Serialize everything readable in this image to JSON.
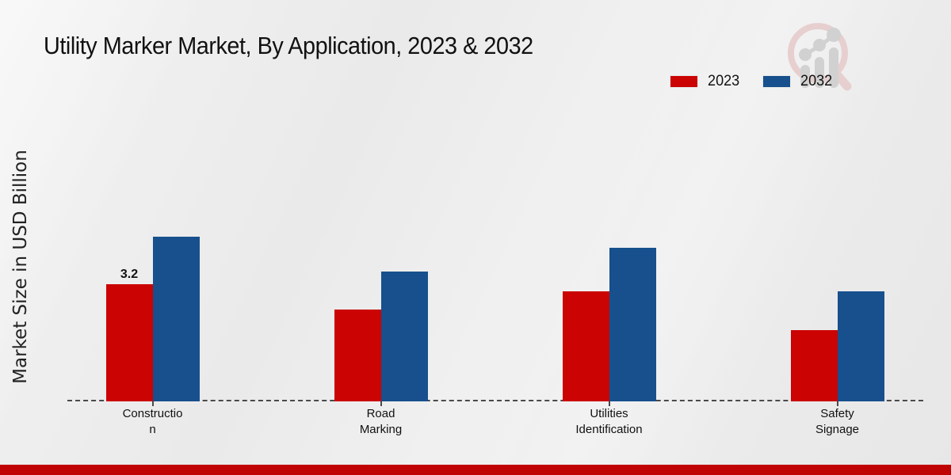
{
  "title": "Utility Marker Market, By Application, 2023 & 2032",
  "ylabel": "Market Size in USD Billion",
  "colors": {
    "series_2023": "#cb0303",
    "series_2032": "#17508d",
    "bottom_band": "#c00404",
    "axis_line": "#4a4a4a",
    "watermark_ring": "#e6caca",
    "watermark_bars": "#cccccc"
  },
  "legend": {
    "items": [
      {
        "label": "2023",
        "color": "#cb0303"
      },
      {
        "label": "2032",
        "color": "#17508d"
      }
    ]
  },
  "watermark_icon": "magnifier-bar-chart-logo",
  "chart_data": {
    "type": "bar",
    "title": "Utility Marker Market, By Application, 2023 & 2032",
    "ylabel": "Market Size in USD Billion",
    "categories": [
      "Construction",
      "Road Marking",
      "Utilities Identification",
      "Safety Signage"
    ],
    "category_display_lines": [
      [
        "Constructio",
        "n"
      ],
      [
        "Road",
        "Marking"
      ],
      [
        "Utilities",
        "Identification"
      ],
      [
        "Safety",
        "Signage"
      ]
    ],
    "series": [
      {
        "name": "2023",
        "color": "#cb0303",
        "values": [
          3.2,
          2.5,
          3.0,
          1.95
        ]
      },
      {
        "name": "2032",
        "color": "#17508d",
        "values": [
          4.5,
          3.55,
          4.2,
          3.0
        ]
      }
    ],
    "bar_labels": [
      {
        "series": "2023",
        "category": "Construction",
        "text": "3.2"
      }
    ],
    "ylim": [
      0,
      5
    ],
    "grid": false,
    "legend_position": "top-right",
    "baseline_style": "dashed"
  }
}
